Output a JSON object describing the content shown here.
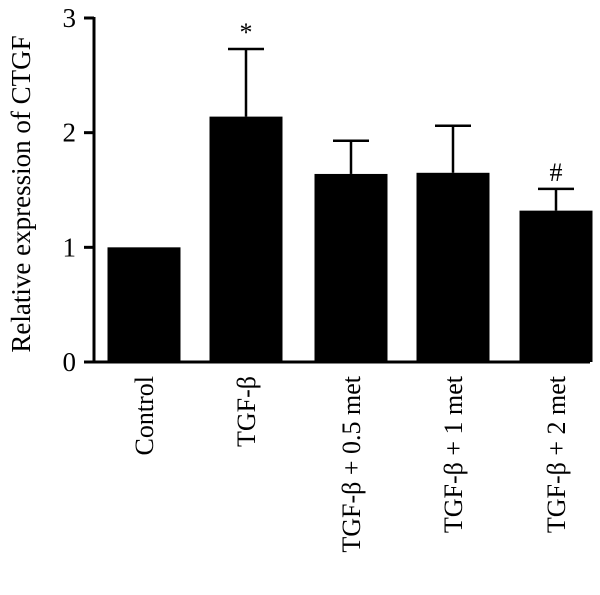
{
  "chart_data": {
    "type": "bar",
    "title": "",
    "xlabel": "",
    "ylabel": "Relative expression of CTGF",
    "ylim": [
      0,
      3
    ],
    "yticks": [
      "0",
      "1",
      "2",
      "3"
    ],
    "categories": [
      "Control",
      "TGF-β",
      "TGF-β + 0.5 met",
      "TGF-β + 1 met",
      "TGF-β + 2 met"
    ],
    "values": [
      1.0,
      2.14,
      1.64,
      1.65,
      1.32
    ],
    "error_upper": [
      0.0,
      0.59,
      0.29,
      0.41,
      0.19
    ],
    "annotations": [
      "",
      "*",
      "",
      "",
      "#"
    ],
    "bar_color": "#000000",
    "grid": false,
    "legend": "none"
  }
}
